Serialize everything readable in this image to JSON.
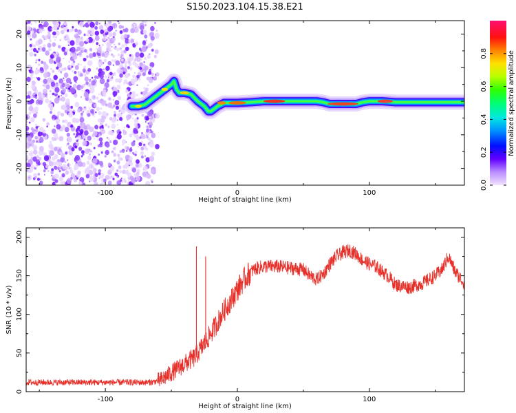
{
  "title": "S150.2023.104.15.38.E21",
  "chart_data": [
    {
      "type": "heatmap",
      "xlabel": "Height of straight line (km)",
      "ylabel": "Frequency (Hz)",
      "xlim": [
        -160,
        172
      ],
      "ylim": [
        -25,
        24
      ],
      "xticks": [
        -100,
        0,
        100
      ],
      "yticks": [
        -20,
        -10,
        0,
        10,
        20
      ],
      "ridge": {
        "x": [
          -80,
          -75,
          -70,
          -65,
          -60,
          -55,
          -50,
          -48,
          -46,
          -44,
          -40,
          -35,
          -30,
          -25,
          -22,
          -20,
          -15,
          -10,
          0,
          10,
          20,
          40,
          60,
          65,
          70,
          80,
          90,
          95,
          100,
          110,
          120,
          140,
          160,
          172
        ],
        "y": [
          -1.5,
          -1.5,
          -1.0,
          0.5,
          2.0,
          3.5,
          5.0,
          6.0,
          3.5,
          2.5,
          2.5,
          2.0,
          0.0,
          -1.5,
          -3.0,
          -3.0,
          -1.5,
          -0.5,
          -0.5,
          -0.3,
          0.0,
          0.0,
          0.0,
          -0.3,
          -0.8,
          -0.8,
          -0.8,
          -0.3,
          0.0,
          0.0,
          -0.3,
          -0.3,
          -0.3,
          -0.3
        ]
      },
      "colorbar": {
        "label": "Normalized spectral amplitude",
        "range": [
          0,
          1
        ],
        "ticks": [
          0.0,
          0.2,
          0.4,
          0.6,
          0.8
        ]
      }
    },
    {
      "type": "line",
      "xlabel": "Height of straight line (km)",
      "ylabel": "SNR (10 * v/v)",
      "xlim": [
        -160,
        172
      ],
      "ylim": [
        0,
        212
      ],
      "xticks": [
        -100,
        0,
        100
      ],
      "yticks": [
        0,
        50,
        100,
        150,
        200
      ],
      "color": "#e8302a",
      "envelope": {
        "x": [
          -160,
          -120,
          -80,
          -65,
          -58,
          -52,
          -45,
          -38,
          -32,
          -28,
          -25,
          -20,
          -15,
          -10,
          -5,
          0,
          5,
          10,
          15,
          20,
          30,
          40,
          50,
          55,
          60,
          65,
          70,
          75,
          80,
          85,
          90,
          95,
          100,
          105,
          110,
          115,
          120,
          130,
          140,
          150,
          155,
          160,
          165,
          172
        ],
        "y": [
          12,
          12,
          12,
          12,
          15,
          22,
          30,
          38,
          45,
          55,
          62,
          75,
          90,
          105,
          118,
          132,
          145,
          155,
          160,
          162,
          162,
          160,
          158,
          150,
          145,
          152,
          165,
          175,
          180,
          183,
          178,
          170,
          165,
          162,
          155,
          148,
          138,
          135,
          140,
          150,
          158,
          175,
          155,
          140
        ]
      },
      "spikes": [
        {
          "x": -31,
          "y": 188
        },
        {
          "x": -24,
          "y": 175
        }
      ]
    }
  ]
}
